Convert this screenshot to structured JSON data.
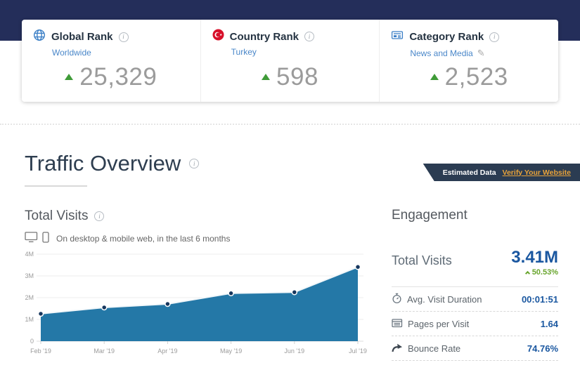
{
  "colors": {
    "header_band": "#242e5a",
    "ribbon_bg": "#2b3c52",
    "ribbon_link": "#e9a33a",
    "link_blue": "#4a87c9",
    "rank_value_gray": "#9b9b9b",
    "rank_trend_green": "#3f9b38",
    "metric_value_blue": "#1a57a0",
    "change_green": "#68a52c",
    "chart_area": "#2478a7",
    "chart_dot": "#17375e"
  },
  "rank_cards": [
    {
      "icon": "globe-icon",
      "title": "Global Rank",
      "subtitle": "Worldwide",
      "value": "25,329",
      "trend": "up"
    },
    {
      "icon": "turkey-flag-icon",
      "title": "Country Rank",
      "subtitle": "Turkey",
      "value": "598",
      "trend": "up"
    },
    {
      "icon": "newspaper-icon",
      "title": "Category Rank",
      "subtitle": "News and Media",
      "value": "2,523",
      "trend": "up",
      "editable": true
    }
  ],
  "traffic_overview": {
    "title": "Traffic Overview",
    "ribbon": {
      "label": "Estimated Data",
      "link_label": "Verify Your Website"
    }
  },
  "total_visits_panel": {
    "title": "Total Visits",
    "caption": "On desktop & mobile web, in the last 6 months"
  },
  "engagement": {
    "title": "Engagement",
    "total_visits": {
      "label": "Total Visits",
      "value": "3.41M",
      "change": "50.53%",
      "direction": "up"
    },
    "rows": [
      {
        "icon": "stopwatch-icon",
        "label": "Avg. Visit Duration",
        "value": "00:01:51"
      },
      {
        "icon": "pages-icon",
        "label": "Pages per Visit",
        "value": "1.64"
      },
      {
        "icon": "bounce-arrow-icon",
        "label": "Bounce Rate",
        "value": "74.76%"
      }
    ]
  },
  "chart_data": {
    "type": "area",
    "title": "Total Visits",
    "x": [
      "Feb '19",
      "Mar '19",
      "Apr '19",
      "May '19",
      "Jun '19",
      "Jul '19"
    ],
    "values": [
      1.26,
      1.55,
      1.71,
      2.2,
      2.25,
      3.41
    ],
    "unit": "M",
    "ylim": [
      0,
      4
    ],
    "yticks": [
      "0",
      "1M",
      "2M",
      "3M",
      "4M"
    ],
    "grid": true,
    "legend": "none",
    "area_color": "#2478a7",
    "line_color": "#f2f7fa",
    "dot_color": "#17375e"
  }
}
